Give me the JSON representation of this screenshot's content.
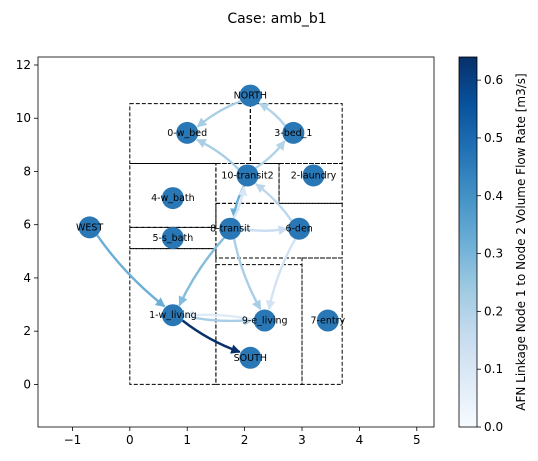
{
  "chart_data": {
    "type": "network",
    "title": "Case: amb_b1",
    "xlabel": "",
    "ylabel": "",
    "xlim": [
      -1.6,
      5.3
    ],
    "ylim": [
      -1.6,
      12.3
    ],
    "xticks": [
      -1,
      0,
      1,
      2,
      3,
      4,
      5
    ],
    "yticks": [
      0,
      2,
      4,
      6,
      8,
      10,
      12
    ],
    "colorbar": {
      "label": "AFN Linkage Node 1 to Node 2 Volume Flow Rate [m3/s]",
      "min": 0.0,
      "max": 0.64,
      "ticks": [
        0.0,
        0.1,
        0.2,
        0.3,
        0.4,
        0.5,
        0.6
      ],
      "colormap": "Blues"
    },
    "node_color": "#2a77b5",
    "rooms": [
      {
        "x0": 0,
        "y0": 0,
        "x1": 1.5,
        "y1": 5.1
      },
      {
        "x0": 1.5,
        "y0": 0,
        "x1": 3.0,
        "y1": 4.5
      },
      {
        "x0": 3.0,
        "y0": 0,
        "x1": 3.7,
        "y1": 4.75
      },
      {
        "x0": 0,
        "y0": 5.1,
        "x1": 1.5,
        "y1": 5.9
      },
      {
        "x0": 0,
        "y0": 5.9,
        "x1": 1.5,
        "y1": 8.3
      },
      {
        "x0": 1.5,
        "y0": 6.8,
        "x1": 2.6,
        "y1": 8.3
      },
      {
        "x0": 2.6,
        "y0": 6.8,
        "x1": 3.7,
        "y1": 8.3
      },
      {
        "x0": 1.5,
        "y0": 4.75,
        "x1": 3.7,
        "y1": 6.8
      },
      {
        "x0": 0,
        "y0": 8.3,
        "x1": 2.1,
        "y1": 10.55
      },
      {
        "x0": 2.1,
        "y0": 8.3,
        "x1": 3.7,
        "y1": 10.55
      }
    ],
    "nodes": [
      {
        "name": "NORTH",
        "x": 2.1,
        "y": 10.85
      },
      {
        "name": "0-w_bed",
        "x": 1.0,
        "y": 9.45
      },
      {
        "name": "3-bed_1",
        "x": 2.85,
        "y": 9.45
      },
      {
        "name": "10-transit2",
        "x": 2.05,
        "y": 7.85
      },
      {
        "name": "2-laundry",
        "x": 3.2,
        "y": 7.85
      },
      {
        "name": "4-w_bath",
        "x": 0.75,
        "y": 7.0
      },
      {
        "name": "WEST",
        "x": -0.7,
        "y": 5.9
      },
      {
        "name": "8-transit",
        "x": 1.75,
        "y": 5.85
      },
      {
        "name": "6-den",
        "x": 2.95,
        "y": 5.85
      },
      {
        "name": "5-s_bath",
        "x": 0.75,
        "y": 5.5
      },
      {
        "name": "1-w_living",
        "x": 0.75,
        "y": 2.6
      },
      {
        "name": "9-e_living",
        "x": 2.35,
        "y": 2.4
      },
      {
        "name": "7-entry",
        "x": 3.45,
        "y": 2.4
      },
      {
        "name": "SOUTH",
        "x": 2.1,
        "y": 1.0
      }
    ],
    "edges": [
      {
        "from": "NORTH",
        "to": "0-w_bed",
        "value": 0.22
      },
      {
        "from": "3-bed_1",
        "to": "NORTH",
        "value": 0.2
      },
      {
        "from": "10-transit2",
        "to": "0-w_bed",
        "value": 0.22
      },
      {
        "from": "10-transit2",
        "to": "3-bed_1",
        "value": 0.2
      },
      {
        "from": "10-transit2",
        "to": "8-transit",
        "value": 0.32
      },
      {
        "from": "8-transit",
        "to": "10-transit2",
        "value": 0.1
      },
      {
        "from": "8-transit",
        "to": "6-den",
        "value": 0.15
      },
      {
        "from": "8-transit",
        "to": "1-w_living",
        "value": 0.28
      },
      {
        "from": "8-transit",
        "to": "9-e_living",
        "value": 0.22
      },
      {
        "from": "6-den",
        "to": "9-e_living",
        "value": 0.12
      },
      {
        "from": "6-den",
        "to": "10-transit2",
        "value": 0.18
      },
      {
        "from": "WEST",
        "to": "1-w_living",
        "value": 0.32
      },
      {
        "from": "1-w_living",
        "to": "SOUTH",
        "value": 0.64
      },
      {
        "from": "1-w_living",
        "to": "9-e_living",
        "value": 0.22
      },
      {
        "from": "9-e_living",
        "to": "1-w_living",
        "value": 0.08
      }
    ]
  }
}
